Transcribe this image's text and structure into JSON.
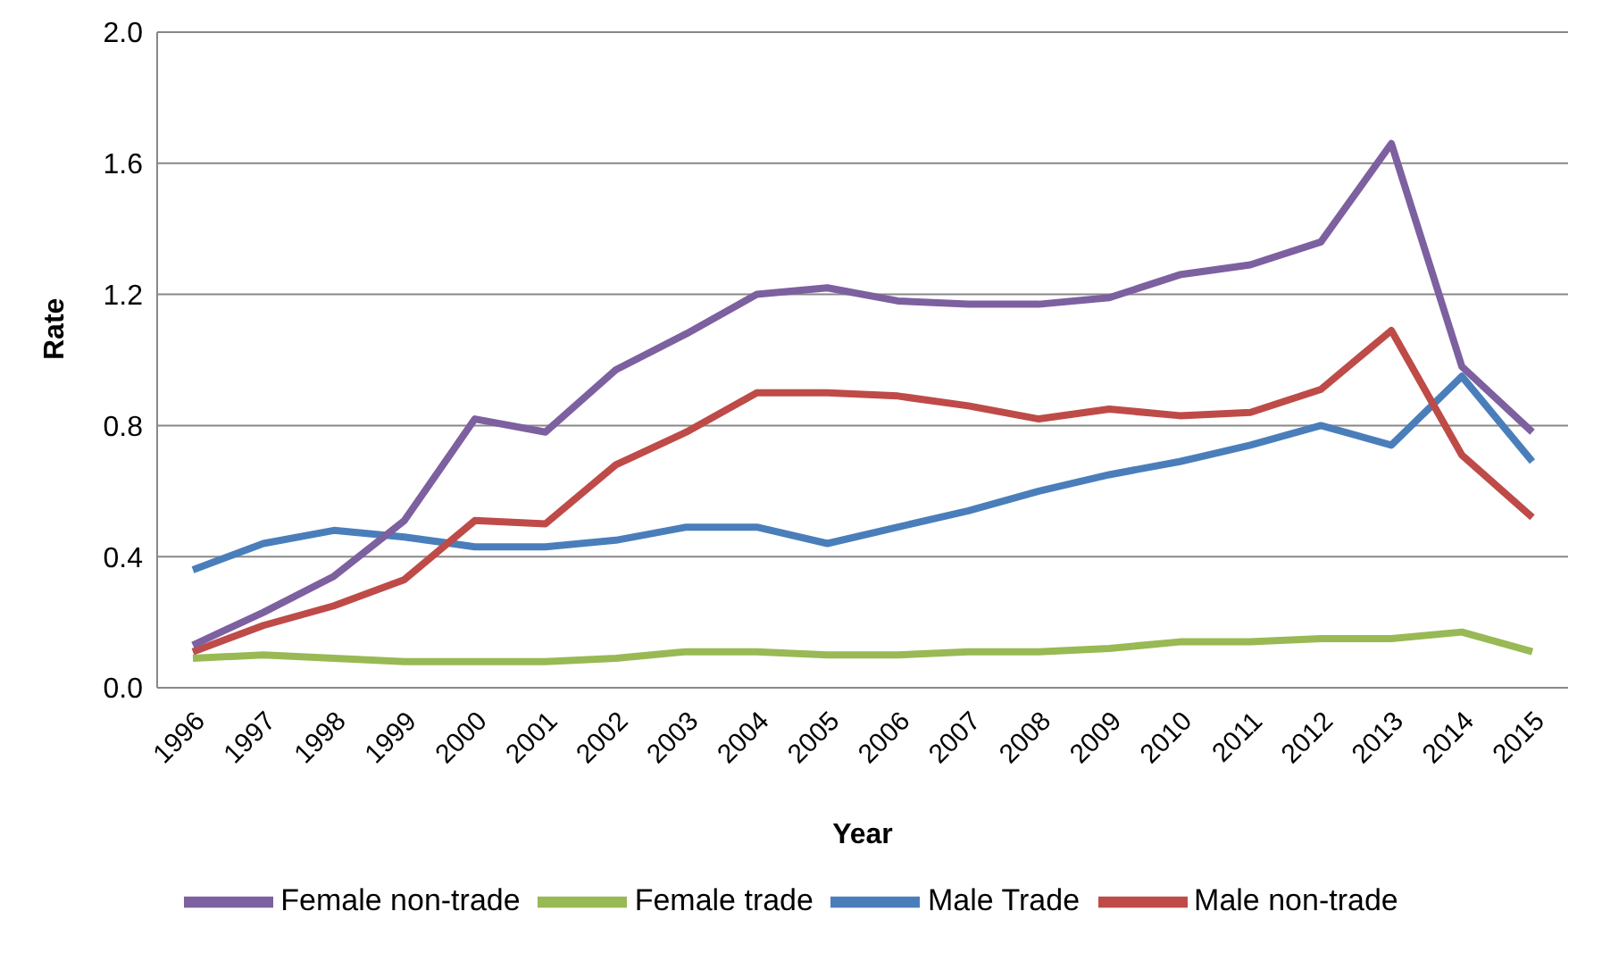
{
  "chart_data": {
    "type": "line",
    "xlabel": "Year",
    "ylabel": "Rate",
    "categories": [
      "1996",
      "1997",
      "1998",
      "1999",
      "2000",
      "2001",
      "2002",
      "2003",
      "2004",
      "2005",
      "2006",
      "2007",
      "2008",
      "2009",
      "2010",
      "2011",
      "2012",
      "2013",
      "2014",
      "2015"
    ],
    "series": [
      {
        "name": "Male Trade",
        "color": "#4a7ebb",
        "values": [
          0.36,
          0.44,
          0.48,
          0.46,
          0.43,
          0.43,
          0.45,
          0.49,
          0.49,
          0.44,
          0.49,
          0.54,
          0.6,
          0.65,
          0.69,
          0.74,
          0.8,
          0.74,
          0.95,
          0.69
        ]
      },
      {
        "name": "Male non-trade",
        "color": "#be4b48",
        "values": [
          0.11,
          0.19,
          0.25,
          0.33,
          0.51,
          0.5,
          0.68,
          0.78,
          0.9,
          0.9,
          0.89,
          0.86,
          0.82,
          0.85,
          0.83,
          0.84,
          0.91,
          1.09,
          0.71,
          0.52
        ]
      },
      {
        "name": "Female trade",
        "color": "#98b954",
        "values": [
          0.09,
          0.1,
          0.09,
          0.08,
          0.08,
          0.08,
          0.09,
          0.11,
          0.11,
          0.1,
          0.1,
          0.11,
          0.11,
          0.12,
          0.14,
          0.14,
          0.15,
          0.15,
          0.17,
          0.11
        ]
      },
      {
        "name": "Female non-trade",
        "color": "#7d60a0",
        "values": [
          0.13,
          0.23,
          0.34,
          0.51,
          0.82,
          0.78,
          0.97,
          1.08,
          1.2,
          1.22,
          1.18,
          1.17,
          1.17,
          1.19,
          1.26,
          1.29,
          1.36,
          1.66,
          0.98,
          0.78
        ]
      }
    ],
    "ylim": [
      0,
      2
    ],
    "yticks": [
      {
        "value": 0,
        "label": "0.0"
      },
      {
        "value": 0.4,
        "label": "0.4"
      },
      {
        "value": 0.8,
        "label": "0.8"
      },
      {
        "value": 1.2,
        "label": "1.2"
      },
      {
        "value": 1.6,
        "label": "1.6"
      },
      {
        "value": 2,
        "label": "2.0"
      }
    ],
    "grid": "y",
    "legend": "bottom",
    "marker": "none",
    "line_style": "solid"
  }
}
